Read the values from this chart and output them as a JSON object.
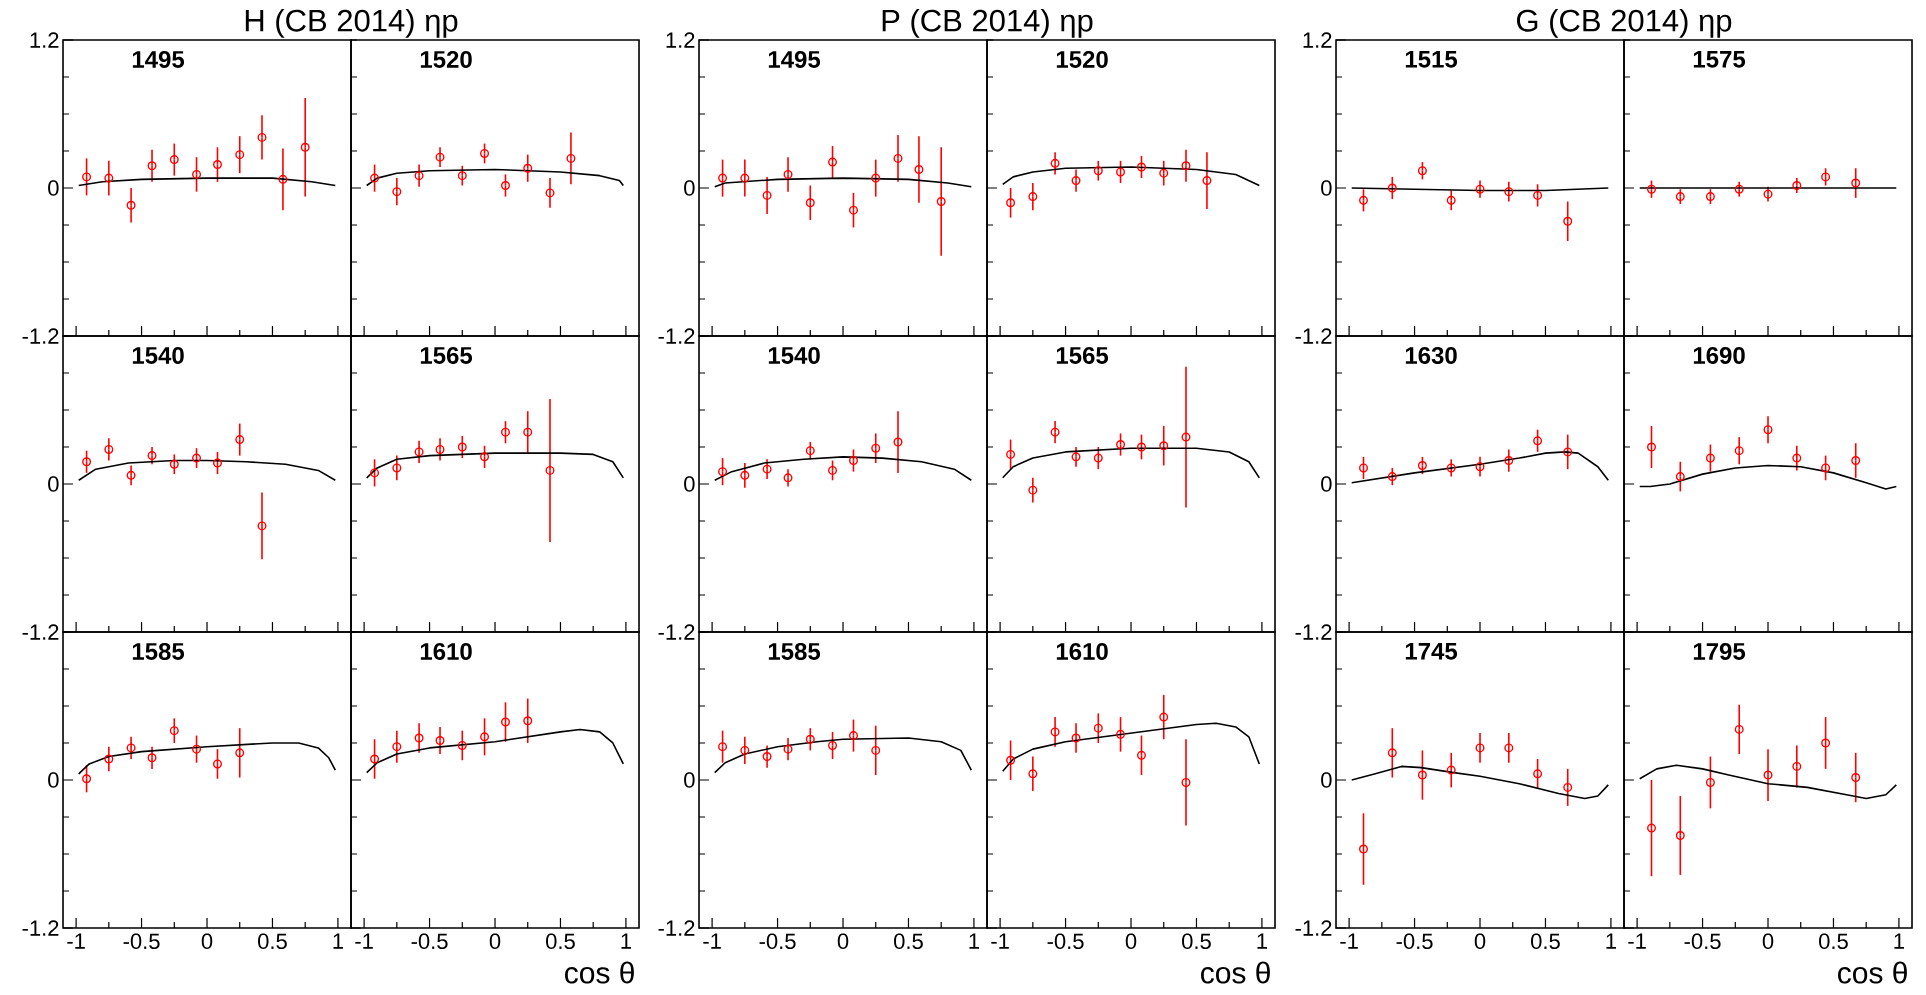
{
  "chart_data": [
    {
      "type": "scatter",
      "title": "1495",
      "annotations": [
        "H (CB 2014) ηp"
      ],
      "x": [
        -0.92,
        -0.75,
        -0.58,
        -0.42,
        -0.25,
        -0.08,
        0.08,
        0.25,
        0.42,
        0.58,
        0.75
      ],
      "xlim": [
        -1.1,
        1.1
      ],
      "ylim": [
        -1.2,
        1.2
      ],
      "tick_labels": "y",
      "xticks": [
        -1,
        {
          "value": -0.75,
          "label": null
        },
        -0.5,
        {
          "value": -0.25,
          "label": null
        },
        0,
        {
          "value": 0.25,
          "label": null
        },
        0.5,
        {
          "value": 0.75,
          "label": null
        },
        1
      ],
      "yticks": [
        -1.2,
        {
          "value": -0.9,
          "label": null
        },
        {
          "value": -0.6,
          "label": null
        },
        {
          "value": -0.3,
          "label": null
        },
        0,
        {
          "value": 0.3,
          "label": null
        },
        {
          "value": 0.6,
          "label": null
        },
        {
          "value": 0.9,
          "label": null
        },
        1.2
      ],
      "series": [
        {
          "type": "scatter",
          "color": "#ff0000",
          "marker": "circle",
          "values": [
            0.09,
            0.08,
            -0.14,
            0.18,
            0.23,
            0.11,
            0.19,
            0.27,
            0.41,
            0.07,
            0.33
          ],
          "errors": [
            0.15,
            0.14,
            0.14,
            0.13,
            0.13,
            0.14,
            0.14,
            0.15,
            0.18,
            0.25,
            0.4
          ]
        },
        {
          "type": "line",
          "color": "#000000",
          "x": [
            -0.98,
            -0.8,
            -0.5,
            0,
            0.5,
            0.8,
            0.98
          ],
          "values": [
            0.02,
            0.05,
            0.07,
            0.08,
            0.08,
            0.05,
            0.02
          ]
        }
      ]
    },
    {
      "type": "scatter",
      "title": "1520",
      "x": [
        -0.92,
        -0.75,
        -0.58,
        -0.42,
        -0.25,
        -0.08,
        0.08,
        0.25,
        0.42,
        0.58
      ],
      "xlim": [
        -1.1,
        1.1
      ],
      "ylim": [
        -1.2,
        1.2
      ],
      "tick_labels": false,
      "xticks": [
        -1,
        {
          "value": -0.75,
          "label": null
        },
        -0.5,
        {
          "value": -0.25,
          "label": null
        },
        0,
        {
          "value": 0.25,
          "label": null
        },
        0.5,
        {
          "value": 0.75,
          "label": null
        },
        1
      ],
      "yticks": [
        -1.2,
        {
          "value": -0.9,
          "label": null
        },
        {
          "value": -0.6,
          "label": null
        },
        {
          "value": -0.3,
          "label": null
        },
        0,
        {
          "value": 0.3,
          "label": null
        },
        {
          "value": 0.6,
          "label": null
        },
        {
          "value": 0.9,
          "label": null
        },
        {
          "value": 1.2,
          "label": null
        }
      ],
      "series": [
        {
          "type": "scatter",
          "color": "#ff0000",
          "marker": "circle",
          "values": [
            0.08,
            -0.03,
            0.1,
            0.25,
            0.1,
            0.28,
            0.02,
            0.16,
            -0.04,
            0.24
          ],
          "errors": [
            0.11,
            0.11,
            0.09,
            0.08,
            0.08,
            0.08,
            0.09,
            0.11,
            0.12,
            0.21
          ]
        },
        {
          "type": "line",
          "color": "#000000",
          "x": [
            -0.98,
            -0.9,
            -0.75,
            -0.5,
            0,
            0.5,
            0.8,
            0.95,
            0.98
          ],
          "values": [
            0.02,
            0.08,
            0.12,
            0.14,
            0.15,
            0.13,
            0.1,
            0.06,
            0.02
          ]
        }
      ]
    },
    {
      "type": "scatter",
      "title": "1540",
      "x": [
        -0.92,
        -0.75,
        -0.58,
        -0.42,
        -0.25,
        -0.08,
        0.08,
        0.25,
        0.42
      ],
      "xlim": [
        -1.1,
        1.1
      ],
      "ylim": [
        -1.2,
        1.2
      ],
      "tick_labels": "y",
      "xticks": [
        -1,
        {
          "value": -0.75,
          "label": null
        },
        -0.5,
        {
          "value": -0.25,
          "label": null
        },
        0,
        {
          "value": 0.25,
          "label": null
        },
        0.5,
        {
          "value": 0.75,
          "label": null
        },
        1
      ],
      "yticks": [
        -1.2,
        {
          "value": -0.9,
          "label": null
        },
        {
          "value": -0.6,
          "label": null
        },
        {
          "value": -0.3,
          "label": null
        },
        0,
        {
          "value": 0.3,
          "label": null
        },
        {
          "value": 0.6,
          "label": null
        },
        {
          "value": 0.9,
          "label": null
        },
        {
          "value": 1.2,
          "label": null
        }
      ],
      "series": [
        {
          "type": "scatter",
          "color": "#ff0000",
          "marker": "circle",
          "values": [
            0.18,
            0.28,
            0.07,
            0.23,
            0.16,
            0.21,
            0.17,
            0.36,
            -0.34
          ],
          "errors": [
            0.09,
            0.09,
            0.08,
            0.07,
            0.08,
            0.08,
            0.09,
            0.13,
            0.27
          ]
        },
        {
          "type": "line",
          "color": "#000000",
          "x": [
            -0.98,
            -0.85,
            -0.6,
            -0.25,
            0,
            0.3,
            0.6,
            0.85,
            0.98
          ],
          "values": [
            0.03,
            0.12,
            0.17,
            0.19,
            0.19,
            0.18,
            0.16,
            0.11,
            0.03
          ]
        }
      ]
    },
    {
      "type": "scatter",
      "title": "1565",
      "x": [
        -0.92,
        -0.75,
        -0.58,
        -0.42,
        -0.25,
        -0.08,
        0.08,
        0.25,
        0.42
      ],
      "xlim": [
        -1.1,
        1.1
      ],
      "ylim": [
        -1.2,
        1.2
      ],
      "tick_labels": false,
      "xticks": [
        -1,
        {
          "value": -0.75,
          "label": null
        },
        -0.5,
        {
          "value": -0.25,
          "label": null
        },
        0,
        {
          "value": 0.25,
          "label": null
        },
        0.5,
        {
          "value": 0.75,
          "label": null
        },
        1
      ],
      "yticks": [
        -1.2,
        {
          "value": -0.9,
          "label": null
        },
        {
          "value": -0.6,
          "label": null
        },
        {
          "value": -0.3,
          "label": null
        },
        0,
        {
          "value": 0.3,
          "label": null
        },
        {
          "value": 0.6,
          "label": null
        },
        {
          "value": 0.9,
          "label": null
        },
        {
          "value": 1.2,
          "label": null
        }
      ],
      "series": [
        {
          "type": "scatter",
          "color": "#ff0000",
          "marker": "circle",
          "values": [
            0.09,
            0.13,
            0.26,
            0.28,
            0.3,
            0.22,
            0.42,
            0.42,
            0.11
          ],
          "errors": [
            0.11,
            0.1,
            0.09,
            0.09,
            0.09,
            0.09,
            0.09,
            0.17,
            0.58
          ]
        },
        {
          "type": "line",
          "color": "#000000",
          "x": [
            -0.98,
            -0.9,
            -0.75,
            -0.5,
            0,
            0.5,
            0.75,
            0.9,
            0.98
          ],
          "values": [
            0.05,
            0.13,
            0.2,
            0.23,
            0.25,
            0.25,
            0.24,
            0.18,
            0.05
          ]
        }
      ]
    },
    {
      "type": "scatter",
      "title": "1585",
      "x": [
        -0.92,
        -0.75,
        -0.58,
        -0.42,
        -0.25,
        -0.08,
        0.08,
        0.25
      ],
      "xlim": [
        -1.1,
        1.1
      ],
      "ylim": [
        -1.2,
        1.2
      ],
      "xticks": [
        -1,
        {
          "value": -0.75,
          "label": null
        },
        -0.5,
        {
          "value": -0.25,
          "label": null
        },
        0,
        {
          "value": 0.25,
          "label": null
        },
        0.5,
        {
          "value": 0.75,
          "label": null
        },
        1
      ],
      "yticks": [
        -1.2,
        {
          "value": -0.9,
          "label": null
        },
        {
          "value": -0.6,
          "label": null
        },
        {
          "value": -0.3,
          "label": null
        },
        0,
        {
          "value": 0.3,
          "label": null
        },
        {
          "value": 0.6,
          "label": null
        },
        {
          "value": 0.9,
          "label": null
        },
        {
          "value": 1.2,
          "label": null
        }
      ],
      "series": [
        {
          "type": "scatter",
          "color": "#ff0000",
          "marker": "circle",
          "values": [
            0.01,
            0.17,
            0.26,
            0.18,
            0.4,
            0.25,
            0.13,
            0.22
          ],
          "errors": [
            0.11,
            0.1,
            0.09,
            0.09,
            0.1,
            0.11,
            0.12,
            0.2
          ]
        },
        {
          "type": "line",
          "color": "#000000",
          "x": [
            -0.98,
            -0.9,
            -0.75,
            -0.5,
            0,
            0.5,
            0.7,
            0.85,
            0.93,
            0.98
          ],
          "values": [
            0.05,
            0.13,
            0.19,
            0.23,
            0.27,
            0.3,
            0.3,
            0.26,
            0.18,
            0.08
          ]
        }
      ]
    },
    {
      "type": "scatter",
      "title": "1610",
      "xlabel": "cos θ",
      "x": [
        -0.92,
        -0.75,
        -0.58,
        -0.42,
        -0.25,
        -0.08,
        0.08,
        0.25
      ],
      "xlim": [
        -1.1,
        1.1
      ],
      "ylim": [
        -1.2,
        1.2
      ],
      "tick_labels": "x",
      "xticks": [
        -1,
        {
          "value": -0.75,
          "label": null
        },
        -0.5,
        {
          "value": -0.25,
          "label": null
        },
        0,
        {
          "value": 0.25,
          "label": null
        },
        0.5,
        {
          "value": 0.75,
          "label": null
        },
        1
      ],
      "yticks": [
        -1.2,
        {
          "value": -0.9,
          "label": null
        },
        {
          "value": -0.6,
          "label": null
        },
        {
          "value": -0.3,
          "label": null
        },
        0,
        {
          "value": 0.3,
          "label": null
        },
        {
          "value": 0.6,
          "label": null
        },
        {
          "value": 0.9,
          "label": null
        },
        {
          "value": 1.2,
          "label": null
        }
      ],
      "series": [
        {
          "type": "scatter",
          "color": "#ff0000",
          "marker": "circle",
          "values": [
            0.17,
            0.27,
            0.34,
            0.32,
            0.28,
            0.35,
            0.47,
            0.48
          ],
          "errors": [
            0.16,
            0.13,
            0.12,
            0.11,
            0.12,
            0.15,
            0.16,
            0.18
          ]
        },
        {
          "type": "line",
          "color": "#000000",
          "x": [
            -0.98,
            -0.9,
            -0.75,
            -0.5,
            0,
            0.5,
            0.65,
            0.8,
            0.9,
            0.98
          ],
          "values": [
            0.06,
            0.14,
            0.21,
            0.26,
            0.31,
            0.39,
            0.41,
            0.39,
            0.3,
            0.13
          ]
        }
      ]
    },
    {
      "type": "scatter",
      "title": "1495",
      "annotations": [
        "P (CB 2014) ηp"
      ],
      "x": [
        -0.92,
        -0.75,
        -0.58,
        -0.42,
        -0.25,
        -0.08,
        0.08,
        0.25,
        0.42,
        0.58,
        0.75
      ],
      "xlim": [
        -1.1,
        1.1
      ],
      "ylim": [
        -1.2,
        1.2
      ],
      "tick_labels": "y",
      "xticks": [
        -1,
        {
          "value": -0.75,
          "label": null
        },
        -0.5,
        {
          "value": -0.25,
          "label": null
        },
        0,
        {
          "value": 0.25,
          "label": null
        },
        0.5,
        {
          "value": 0.75,
          "label": null
        },
        1
      ],
      "yticks": [
        -1.2,
        {
          "value": -0.9,
          "label": null
        },
        {
          "value": -0.6,
          "label": null
        },
        {
          "value": -0.3,
          "label": null
        },
        0,
        {
          "value": 0.3,
          "label": null
        },
        {
          "value": 0.6,
          "label": null
        },
        {
          "value": 0.9,
          "label": null
        },
        1.2
      ],
      "series": [
        {
          "type": "scatter",
          "color": "#ff0000",
          "marker": "circle",
          "values": [
            0.08,
            0.08,
            -0.06,
            0.11,
            -0.12,
            0.21,
            -0.18,
            0.08,
            0.24,
            0.15,
            -0.11
          ],
          "errors": [
            0.15,
            0.15,
            0.15,
            0.14,
            0.14,
            0.13,
            0.14,
            0.15,
            0.19,
            0.27,
            0.44
          ]
        },
        {
          "type": "line",
          "color": "#000000",
          "x": [
            -0.98,
            -0.9,
            -0.5,
            0,
            0.5,
            0.8,
            0.98
          ],
          "values": [
            0.01,
            0.04,
            0.07,
            0.08,
            0.07,
            0.04,
            0.01
          ]
        }
      ]
    },
    {
      "type": "scatter",
      "title": "1520",
      "x": [
        -0.92,
        -0.75,
        -0.58,
        -0.42,
        -0.25,
        -0.08,
        0.08,
        0.25,
        0.42,
        0.58
      ],
      "xlim": [
        -1.1,
        1.1
      ],
      "ylim": [
        -1.2,
        1.2
      ],
      "tick_labels": false,
      "xticks": [
        -1,
        {
          "value": -0.75,
          "label": null
        },
        -0.5,
        {
          "value": -0.25,
          "label": null
        },
        0,
        {
          "value": 0.25,
          "label": null
        },
        0.5,
        {
          "value": 0.75,
          "label": null
        },
        1
      ],
      "yticks": [
        -1.2,
        {
          "value": -0.9,
          "label": null
        },
        {
          "value": -0.6,
          "label": null
        },
        {
          "value": -0.3,
          "label": null
        },
        0,
        {
          "value": 0.3,
          "label": null
        },
        {
          "value": 0.6,
          "label": null
        },
        {
          "value": 0.9,
          "label": null
        },
        {
          "value": 1.2,
          "label": null
        }
      ],
      "series": [
        {
          "type": "scatter",
          "color": "#ff0000",
          "marker": "circle",
          "values": [
            -0.12,
            -0.07,
            0.2,
            0.06,
            0.14,
            0.13,
            0.17,
            0.12,
            0.18,
            0.06
          ],
          "errors": [
            0.12,
            0.11,
            0.09,
            0.09,
            0.08,
            0.09,
            0.09,
            0.1,
            0.13,
            0.23
          ]
        },
        {
          "type": "line",
          "color": "#000000",
          "x": [
            -0.98,
            -0.9,
            -0.75,
            -0.5,
            0,
            0.5,
            0.8,
            0.98
          ],
          "values": [
            0.03,
            0.09,
            0.13,
            0.16,
            0.17,
            0.15,
            0.11,
            0.02
          ]
        }
      ]
    },
    {
      "type": "scatter",
      "title": "1540",
      "x": [
        -0.92,
        -0.75,
        -0.58,
        -0.42,
        -0.25,
        -0.08,
        0.08,
        0.25,
        0.42
      ],
      "xlim": [
        -1.1,
        1.1
      ],
      "ylim": [
        -1.2,
        1.2
      ],
      "tick_labels": "y",
      "xticks": [
        -1,
        {
          "value": -0.75,
          "label": null
        },
        -0.5,
        {
          "value": -0.25,
          "label": null
        },
        0,
        {
          "value": 0.25,
          "label": null
        },
        0.5,
        {
          "value": 0.75,
          "label": null
        },
        1
      ],
      "yticks": [
        -1.2,
        {
          "value": -0.9,
          "label": null
        },
        {
          "value": -0.6,
          "label": null
        },
        {
          "value": -0.3,
          "label": null
        },
        0,
        {
          "value": 0.3,
          "label": null
        },
        {
          "value": 0.6,
          "label": null
        },
        {
          "value": 0.9,
          "label": null
        },
        {
          "value": 1.2,
          "label": null
        }
      ],
      "series": [
        {
          "type": "scatter",
          "color": "#ff0000",
          "marker": "circle",
          "values": [
            0.1,
            0.07,
            0.12,
            0.05,
            0.27,
            0.11,
            0.19,
            0.29,
            0.34
          ],
          "errors": [
            0.11,
            0.1,
            0.08,
            0.07,
            0.07,
            0.08,
            0.09,
            0.12,
            0.25
          ]
        },
        {
          "type": "line",
          "color": "#000000",
          "x": [
            -0.98,
            -0.85,
            -0.6,
            -0.3,
            0,
            0.3,
            0.6,
            0.85,
            0.98
          ],
          "values": [
            0.03,
            0.1,
            0.17,
            0.2,
            0.22,
            0.21,
            0.18,
            0.12,
            0.03
          ]
        }
      ]
    },
    {
      "type": "scatter",
      "title": "1565",
      "x": [
        -0.92,
        -0.75,
        -0.58,
        -0.42,
        -0.25,
        -0.08,
        0.08,
        0.25,
        0.42
      ],
      "xlim": [
        -1.1,
        1.1
      ],
      "ylim": [
        -1.2,
        1.2
      ],
      "tick_labels": false,
      "xticks": [
        -1,
        {
          "value": -0.75,
          "label": null
        },
        -0.5,
        {
          "value": -0.25,
          "label": null
        },
        0,
        {
          "value": 0.25,
          "label": null
        },
        0.5,
        {
          "value": 0.75,
          "label": null
        },
        1
      ],
      "yticks": [
        -1.2,
        {
          "value": -0.9,
          "label": null
        },
        {
          "value": -0.6,
          "label": null
        },
        {
          "value": -0.3,
          "label": null
        },
        0,
        {
          "value": 0.3,
          "label": null
        },
        {
          "value": 0.6,
          "label": null
        },
        {
          "value": 0.9,
          "label": null
        },
        {
          "value": 1.2,
          "label": null
        }
      ],
      "series": [
        {
          "type": "scatter",
          "color": "#ff0000",
          "marker": "circle",
          "values": [
            0.24,
            -0.05,
            0.42,
            0.22,
            0.21,
            0.32,
            0.3,
            0.31,
            0.38
          ],
          "errors": [
            0.12,
            0.1,
            0.09,
            0.08,
            0.09,
            0.09,
            0.1,
            0.16,
            0.57
          ]
        },
        {
          "type": "line",
          "color": "#000000",
          "x": [
            -0.98,
            -0.9,
            -0.75,
            -0.5,
            0,
            0.5,
            0.75,
            0.9,
            0.98
          ],
          "values": [
            0.05,
            0.14,
            0.21,
            0.26,
            0.29,
            0.29,
            0.26,
            0.18,
            0.05
          ]
        }
      ]
    },
    {
      "type": "scatter",
      "title": "1585",
      "x": [
        -0.92,
        -0.75,
        -0.58,
        -0.42,
        -0.25,
        -0.08,
        0.08,
        0.25
      ],
      "xlim": [
        -1.1,
        1.1
      ],
      "ylim": [
        -1.2,
        1.2
      ],
      "xticks": [
        -1,
        {
          "value": -0.75,
          "label": null
        },
        -0.5,
        {
          "value": -0.25,
          "label": null
        },
        0,
        {
          "value": 0.25,
          "label": null
        },
        0.5,
        {
          "value": 0.75,
          "label": null
        },
        1
      ],
      "yticks": [
        -1.2,
        {
          "value": -0.9,
          "label": null
        },
        {
          "value": -0.6,
          "label": null
        },
        {
          "value": -0.3,
          "label": null
        },
        0,
        {
          "value": 0.3,
          "label": null
        },
        {
          "value": 0.6,
          "label": null
        },
        {
          "value": 0.9,
          "label": null
        },
        {
          "value": 1.2,
          "label": null
        }
      ],
      "series": [
        {
          "type": "scatter",
          "color": "#ff0000",
          "marker": "circle",
          "values": [
            0.27,
            0.24,
            0.19,
            0.25,
            0.33,
            0.28,
            0.36,
            0.24
          ],
          "errors": [
            0.13,
            0.11,
            0.09,
            0.09,
            0.09,
            0.11,
            0.13,
            0.2
          ]
        },
        {
          "type": "line",
          "color": "#000000",
          "x": [
            -0.98,
            -0.9,
            -0.75,
            -0.5,
            -0.2,
            0,
            0.5,
            0.75,
            0.9,
            0.98
          ],
          "values": [
            0.06,
            0.14,
            0.21,
            0.27,
            0.31,
            0.33,
            0.34,
            0.31,
            0.24,
            0.08
          ]
        }
      ]
    },
    {
      "type": "scatter",
      "title": "1610",
      "xlabel": "cos θ",
      "x": [
        -0.92,
        -0.75,
        -0.58,
        -0.42,
        -0.25,
        -0.08,
        0.08,
        0.25,
        0.42
      ],
      "xlim": [
        -1.1,
        1.1
      ],
      "ylim": [
        -1.2,
        1.2
      ],
      "tick_labels": "x",
      "xticks": [
        -1,
        {
          "value": -0.75,
          "label": null
        },
        -0.5,
        {
          "value": -0.25,
          "label": null
        },
        0,
        {
          "value": 0.25,
          "label": null
        },
        0.5,
        {
          "value": 0.75,
          "label": null
        },
        1
      ],
      "yticks": [
        -1.2,
        {
          "value": -0.9,
          "label": null
        },
        {
          "value": -0.6,
          "label": null
        },
        {
          "value": -0.3,
          "label": null
        },
        0,
        {
          "value": 0.3,
          "label": null
        },
        {
          "value": 0.6,
          "label": null
        },
        {
          "value": 0.9,
          "label": null
        },
        {
          "value": 1.2,
          "label": null
        }
      ],
      "series": [
        {
          "type": "scatter",
          "color": "#ff0000",
          "marker": "circle",
          "values": [
            0.16,
            0.05,
            0.39,
            0.34,
            0.42,
            0.37,
            0.2,
            0.51,
            -0.02
          ],
          "errors": [
            0.16,
            0.14,
            0.12,
            0.12,
            0.12,
            0.14,
            0.16,
            0.18,
            0.35
          ]
        },
        {
          "type": "line",
          "color": "#000000",
          "x": [
            -0.98,
            -0.9,
            -0.75,
            -0.5,
            0,
            0.5,
            0.65,
            0.8,
            0.9,
            0.98
          ],
          "values": [
            0.07,
            0.17,
            0.25,
            0.31,
            0.38,
            0.45,
            0.46,
            0.43,
            0.35,
            0.13
          ]
        }
      ]
    },
    {
      "type": "scatter",
      "title": "1515",
      "annotations": [
        "G (CB 2014) ηp"
      ],
      "x": [
        -0.89,
        -0.67,
        -0.44,
        -0.22,
        0,
        0.22,
        0.44,
        0.67
      ],
      "xlim": [
        -1.1,
        1.1
      ],
      "ylim": [
        -1.2,
        1.2
      ],
      "tick_labels": "y",
      "xticks": [
        -1,
        {
          "value": -0.75,
          "label": null
        },
        -0.5,
        {
          "value": -0.25,
          "label": null
        },
        0,
        {
          "value": 0.25,
          "label": null
        },
        0.5,
        {
          "value": 0.75,
          "label": null
        },
        1
      ],
      "yticks": [
        -1.2,
        {
          "value": -0.9,
          "label": null
        },
        {
          "value": -0.6,
          "label": null
        },
        {
          "value": -0.3,
          "label": null
        },
        0,
        {
          "value": 0.3,
          "label": null
        },
        {
          "value": 0.6,
          "label": null
        },
        {
          "value": 0.9,
          "label": null
        },
        1.2
      ],
      "series": [
        {
          "type": "scatter",
          "color": "#ff0000",
          "marker": "circle",
          "values": [
            -0.1,
            0,
            0.14,
            -0.1,
            -0.01,
            -0.03,
            -0.06,
            -0.27
          ],
          "errors": [
            0.09,
            0.09,
            0.07,
            0.08,
            0.07,
            0.08,
            0.09,
            0.16
          ]
        },
        {
          "type": "line",
          "color": "#000000",
          "x": [
            -0.98,
            -0.5,
            0,
            0.5,
            0.98
          ],
          "values": [
            0,
            -0.01,
            -0.02,
            -0.02,
            0
          ]
        }
      ]
    },
    {
      "type": "scatter",
      "title": "1575",
      "x": [
        -0.89,
        -0.67,
        -0.44,
        -0.22,
        0,
        0.22,
        0.44,
        0.67
      ],
      "xlim": [
        -1.1,
        1.1
      ],
      "ylim": [
        -1.2,
        1.2
      ],
      "tick_labels": false,
      "xticks": [
        -1,
        {
          "value": -0.75,
          "label": null
        },
        -0.5,
        {
          "value": -0.25,
          "label": null
        },
        0,
        {
          "value": 0.25,
          "label": null
        },
        0.5,
        {
          "value": 0.75,
          "label": null
        },
        1
      ],
      "yticks": [
        -1.2,
        {
          "value": -0.9,
          "label": null
        },
        {
          "value": -0.6,
          "label": null
        },
        {
          "value": -0.3,
          "label": null
        },
        0,
        {
          "value": 0.3,
          "label": null
        },
        {
          "value": 0.6,
          "label": null
        },
        {
          "value": 0.9,
          "label": null
        },
        {
          "value": 1.2,
          "label": null
        }
      ],
      "series": [
        {
          "type": "scatter",
          "color": "#ff0000",
          "marker": "circle",
          "values": [
            -0.01,
            -0.07,
            -0.07,
            -0.01,
            -0.05,
            0.02,
            0.09,
            0.04
          ],
          "errors": [
            0.07,
            0.06,
            0.06,
            0.06,
            0.06,
            0.06,
            0.07,
            0.12
          ]
        },
        {
          "type": "line",
          "color": "#000000",
          "x": [
            -0.98,
            0,
            0.98
          ],
          "values": [
            0,
            0,
            0
          ]
        }
      ]
    },
    {
      "type": "scatter",
      "title": "1630",
      "x": [
        -0.89,
        -0.67,
        -0.44,
        -0.22,
        0,
        0.22,
        0.44,
        0.67
      ],
      "xlim": [
        -1.1,
        1.1
      ],
      "ylim": [
        -1.2,
        1.2
      ],
      "tick_labels": "y",
      "xticks": [
        -1,
        {
          "value": -0.75,
          "label": null
        },
        -0.5,
        {
          "value": -0.25,
          "label": null
        },
        0,
        {
          "value": 0.25,
          "label": null
        },
        0.5,
        {
          "value": 0.75,
          "label": null
        },
        1
      ],
      "yticks": [
        -1.2,
        {
          "value": -0.9,
          "label": null
        },
        {
          "value": -0.6,
          "label": null
        },
        {
          "value": -0.3,
          "label": null
        },
        0,
        {
          "value": 0.3,
          "label": null
        },
        {
          "value": 0.6,
          "label": null
        },
        {
          "value": 0.9,
          "label": null
        },
        {
          "value": 1.2,
          "label": null
        }
      ],
      "series": [
        {
          "type": "scatter",
          "color": "#ff0000",
          "marker": "circle",
          "values": [
            0.13,
            0.06,
            0.15,
            0.13,
            0.14,
            0.19,
            0.35,
            0.26
          ],
          "errors": [
            0.09,
            0.07,
            0.07,
            0.07,
            0.08,
            0.09,
            0.09,
            0.14
          ]
        },
        {
          "type": "line",
          "color": "#000000",
          "x": [
            -0.98,
            -0.5,
            0,
            0.3,
            0.5,
            0.65,
            0.75,
            0.9,
            0.98
          ],
          "values": [
            0.01,
            0.09,
            0.16,
            0.21,
            0.25,
            0.26,
            0.25,
            0.14,
            0.03
          ]
        }
      ]
    },
    {
      "type": "scatter",
      "title": "1690",
      "x": [
        -0.89,
        -0.67,
        -0.44,
        -0.22,
        0,
        0.22,
        0.44,
        0.67
      ],
      "xlim": [
        -1.1,
        1.1
      ],
      "ylim": [
        -1.2,
        1.2
      ],
      "tick_labels": false,
      "xticks": [
        -1,
        {
          "value": -0.75,
          "label": null
        },
        -0.5,
        {
          "value": -0.25,
          "label": null
        },
        0,
        {
          "value": 0.25,
          "label": null
        },
        0.5,
        {
          "value": 0.75,
          "label": null
        },
        1
      ],
      "yticks": [
        -1.2,
        {
          "value": -0.9,
          "label": null
        },
        {
          "value": -0.6,
          "label": null
        },
        {
          "value": -0.3,
          "label": null
        },
        0,
        {
          "value": 0.3,
          "label": null
        },
        {
          "value": 0.6,
          "label": null
        },
        {
          "value": 0.9,
          "label": null
        },
        {
          "value": 1.2,
          "label": null
        }
      ],
      "series": [
        {
          "type": "scatter",
          "color": "#ff0000",
          "marker": "circle",
          "values": [
            0.3,
            0.06,
            0.21,
            0.27,
            0.44,
            0.21,
            0.13,
            0.19
          ],
          "errors": [
            0.17,
            0.12,
            0.11,
            0.11,
            0.11,
            0.1,
            0.1,
            0.14
          ]
        },
        {
          "type": "line",
          "color": "#000000",
          "x": [
            -0.98,
            -0.9,
            -0.75,
            -0.5,
            -0.25,
            0,
            0.25,
            0.5,
            0.75,
            0.9,
            0.98
          ],
          "values": [
            -0.02,
            -0.02,
            0,
            0.08,
            0.13,
            0.15,
            0.14,
            0.09,
            0.01,
            -0.04,
            -0.02
          ]
        }
      ]
    },
    {
      "type": "scatter",
      "title": "1745",
      "x": [
        -0.89,
        -0.67,
        -0.44,
        -0.22,
        0,
        0.22,
        0.44,
        0.67
      ],
      "xlim": [
        -1.1,
        1.1
      ],
      "ylim": [
        -1.2,
        1.2
      ],
      "xticks": [
        -1,
        {
          "value": -0.75,
          "label": null
        },
        -0.5,
        {
          "value": -0.25,
          "label": null
        },
        0,
        {
          "value": 0.25,
          "label": null
        },
        0.5,
        {
          "value": 0.75,
          "label": null
        },
        1
      ],
      "yticks": [
        -1.2,
        {
          "value": -0.9,
          "label": null
        },
        {
          "value": -0.6,
          "label": null
        },
        {
          "value": -0.3,
          "label": null
        },
        0,
        {
          "value": 0.3,
          "label": null
        },
        {
          "value": 0.6,
          "label": null
        },
        {
          "value": 0.9,
          "label": null
        },
        {
          "value": 1.2,
          "label": null
        }
      ],
      "series": [
        {
          "type": "scatter",
          "color": "#ff0000",
          "marker": "circle",
          "values": [
            -0.56,
            0.22,
            0.04,
            0.08,
            0.26,
            0.26,
            0.05,
            -0.06
          ],
          "errors": [
            0.29,
            0.2,
            0.2,
            0.14,
            0.12,
            0.12,
            0.12,
            0.15
          ]
        },
        {
          "type": "line",
          "color": "#000000",
          "x": [
            -0.98,
            -0.8,
            -0.6,
            -0.45,
            -0.2,
            0,
            0.3,
            0.6,
            0.8,
            0.9,
            0.98
          ],
          "values": [
            0,
            0.05,
            0.11,
            0.1,
            0.06,
            0.03,
            -0.03,
            -0.11,
            -0.15,
            -0.13,
            -0.04
          ]
        }
      ]
    },
    {
      "type": "scatter",
      "title": "1795",
      "xlabel": "cos θ",
      "x": [
        -0.89,
        -0.67,
        -0.44,
        -0.22,
        0,
        0.22,
        0.44,
        0.67
      ],
      "xlim": [
        -1.1,
        1.1
      ],
      "ylim": [
        -1.2,
        1.2
      ],
      "tick_labels": "x",
      "xticks": [
        -1,
        {
          "value": -0.75,
          "label": null
        },
        -0.5,
        {
          "value": -0.25,
          "label": null
        },
        0,
        {
          "value": 0.25,
          "label": null
        },
        0.5,
        {
          "value": 0.75,
          "label": null
        },
        1
      ],
      "yticks": [
        -1.2,
        {
          "value": -0.9,
          "label": null
        },
        {
          "value": -0.6,
          "label": null
        },
        {
          "value": -0.3,
          "label": null
        },
        0,
        {
          "value": 0.3,
          "label": null
        },
        {
          "value": 0.6,
          "label": null
        },
        {
          "value": 0.9,
          "label": null
        },
        {
          "value": 1.2,
          "label": null
        }
      ],
      "series": [
        {
          "type": "scatter",
          "color": "#ff0000",
          "marker": "circle",
          "values": [
            -0.39,
            -0.45,
            -0.02,
            0.41,
            0.04,
            0.11,
            0.3,
            0.02
          ],
          "errors": [
            0.39,
            0.32,
            0.21,
            0.2,
            0.21,
            0.17,
            0.21,
            0.2
          ]
        },
        {
          "type": "line",
          "color": "#000000",
          "x": [
            -0.98,
            -0.85,
            -0.7,
            -0.5,
            -0.3,
            0,
            0.3,
            0.6,
            0.75,
            0.9,
            0.98
          ],
          "values": [
            0.01,
            0.09,
            0.12,
            0.09,
            0.04,
            -0.03,
            -0.06,
            -0.12,
            -0.15,
            -0.12,
            -0.04
          ]
        }
      ]
    }
  ]
}
